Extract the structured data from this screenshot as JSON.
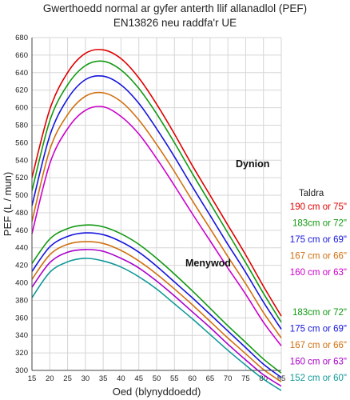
{
  "chart_data": {
    "type": "line",
    "title": "Gwerthoedd normal ar gyfer anterth llif allanadlol (PEF)",
    "subtitle": "EN13826 neu raddfa'r UE",
    "xlabel": "Oed (blynyddoedd)",
    "ylabel": "PEF (L / mun)",
    "xlim": [
      15,
      85
    ],
    "ylim": [
      300,
      680
    ],
    "x_ticks": [
      "15",
      "20",
      "25",
      "30",
      "35",
      "40",
      "45",
      "50",
      "55",
      "60",
      "65",
      "70",
      "75",
      "80",
      "85"
    ],
    "y_ticks": [
      "300",
      "320",
      "340",
      "360",
      "380",
      "400",
      "420",
      "440",
      "460",
      "480",
      "500",
      "520",
      "540",
      "560",
      "580",
      "600",
      "620",
      "640",
      "660",
      "680"
    ],
    "grid": true,
    "x": [
      15,
      20,
      25,
      30,
      35,
      40,
      45,
      50,
      55,
      60,
      65,
      70,
      75,
      80,
      85
    ],
    "legend_title": "Taldra",
    "groups": [
      {
        "label": "Dynion",
        "series": [
          {
            "name": "190 cm or 75\"",
            "color": "#e00000",
            "values": [
              520,
              598,
              640,
              662,
              666,
              656,
              634,
              604,
              570,
              534,
              500,
              466,
              432,
              396,
              362
            ]
          },
          {
            "name": "183cm or 72\"",
            "color": "#119911",
            "values": [
              505,
              585,
              626,
              648,
              653,
              643,
              622,
              593,
              560,
              525,
              491,
              457,
              423,
              388,
              355
            ]
          },
          {
            "name": "175 cm or 69\"",
            "color": "#1515dd",
            "values": [
              488,
              568,
              610,
              632,
              636,
              626,
              605,
              576,
              544,
              510,
              477,
              444,
              412,
              378,
              347
            ]
          },
          {
            "name": "167 cm or 66\"",
            "color": "#d07010",
            "values": [
              470,
              552,
              592,
              613,
              617,
              607,
              586,
              558,
              527,
              494,
              462,
              430,
              399,
              366,
              337
            ]
          },
          {
            "name": "160 cm or 63\"",
            "color": "#cc00cc",
            "values": [
              456,
              536,
              576,
              597,
              601,
              590,
              570,
              542,
              511,
              479,
              448,
              417,
              387,
              355,
              328
            ]
          }
        ]
      },
      {
        "label": "Menywod",
        "series": [
          {
            "name": "183cm or 72\"",
            "color": "#119911",
            "values": [
              422,
              450,
              462,
              466,
              464,
              456,
              444,
              428,
              410,
              391,
              371,
              351,
              332,
              313,
              297
            ]
          },
          {
            "name": "175 cm or 69\"",
            "color": "#1515dd",
            "values": [
              413,
              441,
              453,
              457,
              455,
              447,
              435,
              419,
              401,
              383,
              364,
              345,
              326,
              307,
              292
            ]
          },
          {
            "name": "167 cm or 66\"",
            "color": "#d07010",
            "values": [
              404,
              432,
              444,
              447,
              445,
              437,
              425,
              410,
              393,
              375,
              356,
              337,
              319,
              301,
              287
            ]
          },
          {
            "name": "160 cm or 63\"",
            "color": "#aa00cc",
            "values": [
              395,
              423,
              435,
              438,
              436,
              428,
              417,
              402,
              385,
              367,
              349,
              330,
              312,
              295,
              282
            ]
          },
          {
            "name": "152 cm or 60\"",
            "color": "#119999",
            "values": [
              383,
              412,
              424,
              428,
              425,
              418,
              407,
              393,
              376,
              359,
              341,
              323,
              306,
              290,
              277
            ]
          }
        ]
      }
    ]
  }
}
